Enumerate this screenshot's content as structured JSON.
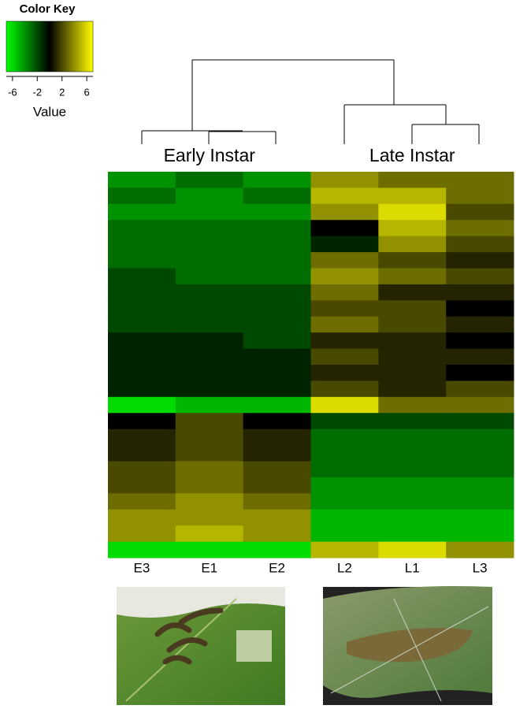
{
  "chart_data": {
    "type": "heatmap",
    "key_title": "Color Key",
    "key_label": "Value",
    "clim": [
      -7,
      7
    ],
    "key_ticks": [
      -6,
      -2,
      2,
      6
    ],
    "low_color": "#00ff00",
    "mid_color": "#000000",
    "high_color": "#ffff00",
    "groups": [
      "Early Instar",
      "Late Instar"
    ],
    "columns": [
      "E3",
      "E1",
      "E2",
      "L2",
      "L1",
      "L3"
    ],
    "values": [
      [
        -4,
        -3,
        -4,
        4,
        3,
        3
      ],
      [
        -3,
        -4,
        -3,
        5,
        5,
        3
      ],
      [
        -4,
        -4,
        -4,
        4,
        6,
        2
      ],
      [
        -3,
        -3,
        -3,
        0,
        5,
        3
      ],
      [
        -3,
        -3,
        -3,
        -1,
        4,
        2
      ],
      [
        -3,
        -3,
        -3,
        3,
        2,
        1
      ],
      [
        -2,
        -3,
        -3,
        4,
        3,
        2
      ],
      [
        -2,
        -2,
        -2,
        3,
        1,
        1
      ],
      [
        -2,
        -2,
        -2,
        2,
        2,
        0
      ],
      [
        -2,
        -2,
        -2,
        3,
        2,
        1
      ],
      [
        -1,
        -1,
        -2,
        1,
        1,
        0
      ],
      [
        -1,
        -1,
        -1,
        2,
        1,
        1
      ],
      [
        -1,
        -1,
        -1,
        1,
        1,
        0
      ],
      [
        -1,
        -1,
        -1,
        2,
        1,
        2
      ],
      [
        -6,
        -5,
        -5,
        6,
        3,
        3
      ],
      [
        0,
        2,
        0,
        -2,
        -2,
        -2
      ],
      [
        1,
        2,
        1,
        -3,
        -3,
        -3
      ],
      [
        1,
        2,
        1,
        -3,
        -3,
        -3
      ],
      [
        2,
        3,
        2,
        -3,
        -3,
        -3
      ],
      [
        2,
        3,
        2,
        -4,
        -4,
        -4
      ],
      [
        3,
        4,
        3,
        -4,
        -4,
        -4
      ],
      [
        4,
        4,
        4,
        -5,
        -5,
        -5
      ],
      [
        4,
        5,
        4,
        -5,
        -5,
        -5
      ],
      [
        -6,
        -6,
        -6,
        5,
        6,
        4
      ]
    ]
  }
}
